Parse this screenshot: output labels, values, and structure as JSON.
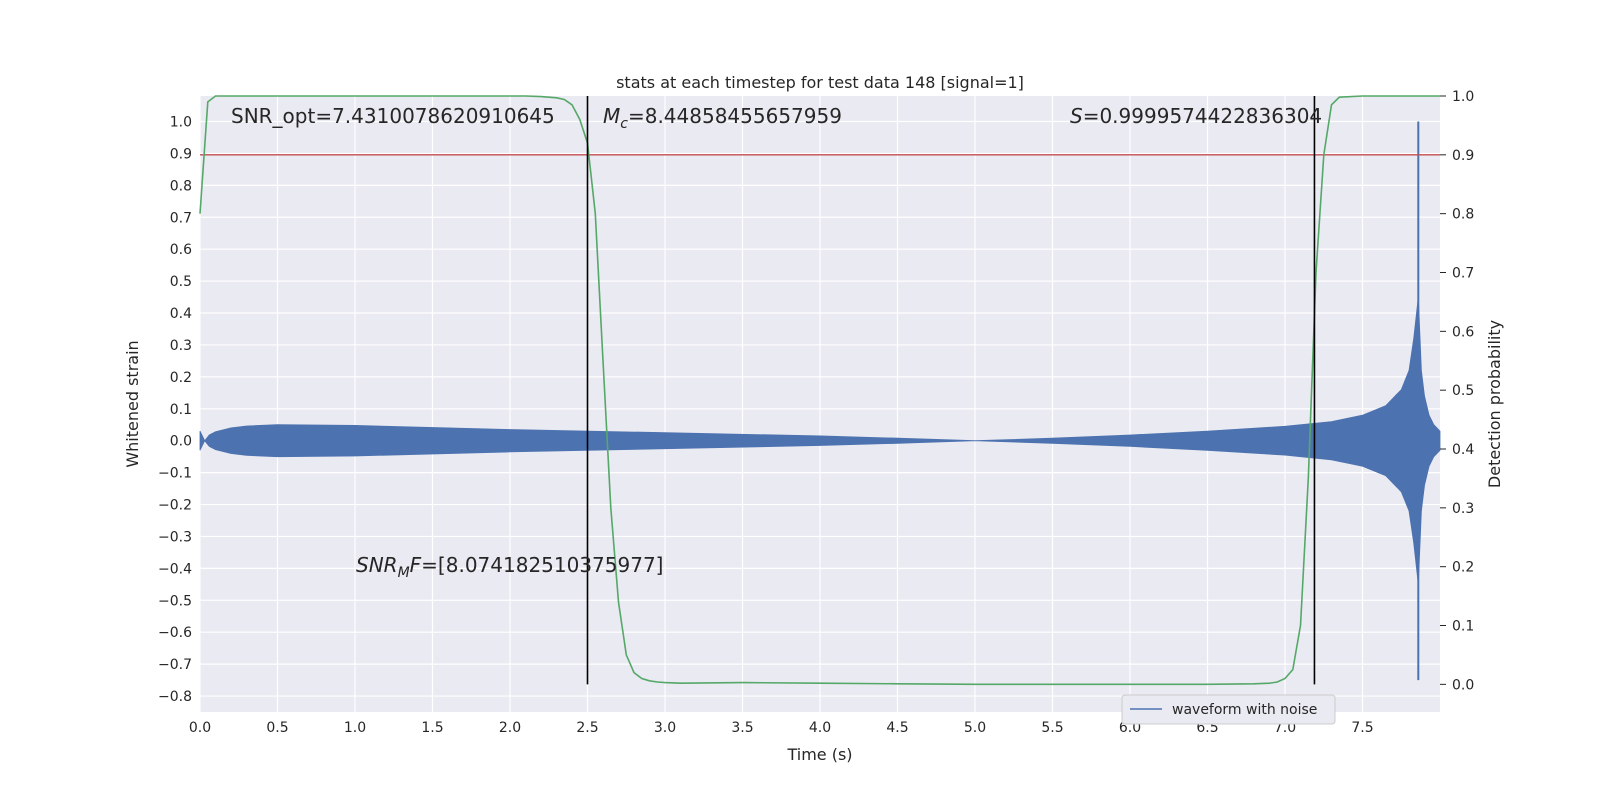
{
  "chart_data": {
    "type": "line",
    "title": "stats at each timestep for test data 148 [signal=1]",
    "xlabel": "Time (s)",
    "ylabel": "Whitened strain",
    "y2label": "Detection probability",
    "xlim": [
      0.0,
      8.0
    ],
    "ylim": [
      -0.85,
      1.08
    ],
    "y2lim": [
      -0.047,
      1.0
    ],
    "x_ticks": [
      "0.0",
      "0.5",
      "1.0",
      "1.5",
      "2.0",
      "2.5",
      "3.0",
      "3.5",
      "4.0",
      "4.5",
      "5.0",
      "5.5",
      "6.0",
      "6.5",
      "7.0",
      "7.5"
    ],
    "y_ticks": [
      "1.0",
      "0.9",
      "0.8",
      "0.7",
      "0.6",
      "0.5",
      "0.4",
      "0.3",
      "0.2",
      "0.1",
      "0.0",
      "−0.1",
      "−0.2",
      "−0.3",
      "−0.4",
      "−0.5",
      "−0.6",
      "−0.7",
      "−0.8"
    ],
    "y2_ticks": [
      "1.0",
      "0.9",
      "0.8",
      "0.7",
      "0.6",
      "0.5",
      "0.4",
      "0.3",
      "0.2",
      "0.1",
      "0.0"
    ],
    "grid": true,
    "legend_position": "lower-right",
    "annotations": {
      "snr_opt": "SNR_opt=7.4310078620910645",
      "mc": "=8.44858455657959",
      "s": "=0.9999574422836304",
      "snr_mf": "=[8.074182510375977]"
    },
    "threshold": {
      "value": 0.9,
      "color": "#c44e52"
    },
    "vertical_lines": {
      "x": [
        2.5,
        7.19
      ],
      "ymin": 0.0,
      "ymax": 1.0,
      "color": "#000000"
    },
    "series": [
      {
        "name": "waveform with noise",
        "axis": "left",
        "color": "#4c72b0",
        "envelope": {
          "t": [
            0.0,
            0.03,
            0.06,
            0.1,
            0.2,
            0.3,
            0.5,
            1.0,
            2.0,
            3.0,
            4.0,
            4.5,
            5.0,
            5.5,
            6.0,
            6.5,
            7.0,
            7.3,
            7.5,
            7.65,
            7.75,
            7.8,
            7.83,
            7.86,
            7.88,
            7.9,
            7.93,
            7.96,
            8.0
          ],
          "amplitude": [
            0.03,
            0.0,
            0.018,
            0.028,
            0.04,
            0.046,
            0.05,
            0.048,
            0.035,
            0.025,
            0.015,
            0.008,
            0.0,
            0.008,
            0.018,
            0.03,
            0.045,
            0.06,
            0.08,
            0.11,
            0.16,
            0.22,
            0.32,
            0.45,
            0.22,
            0.14,
            0.08,
            0.05,
            0.03
          ]
        },
        "spike": {
          "x": 7.86,
          "ymin": -0.75,
          "ymax": 1.0
        }
      },
      {
        "name": "detection probability",
        "axis": "right",
        "color": "#55a868",
        "x": [
          0.0,
          0.05,
          0.1,
          0.15,
          0.2,
          0.5,
          1.0,
          1.5,
          2.0,
          2.1,
          2.2,
          2.3,
          2.35,
          2.4,
          2.45,
          2.5,
          2.55,
          2.6,
          2.65,
          2.7,
          2.75,
          2.8,
          2.85,
          2.9,
          2.95,
          3.0,
          3.1,
          3.5,
          4.0,
          4.5,
          5.0,
          6.0,
          6.5,
          6.8,
          6.9,
          6.95,
          7.0,
          7.05,
          7.1,
          7.15,
          7.2,
          7.25,
          7.3,
          7.35,
          7.5,
          8.0
        ],
        "y": [
          0.8,
          0.99,
          1.0,
          1.0,
          1.0,
          1.0,
          1.0,
          1.0,
          1.0,
          1.0,
          0.999,
          0.997,
          0.994,
          0.985,
          0.96,
          0.92,
          0.8,
          0.55,
          0.3,
          0.14,
          0.05,
          0.02,
          0.01,
          0.006,
          0.004,
          0.003,
          0.002,
          0.003,
          0.002,
          0.001,
          0.0,
          0.0,
          0.0,
          0.001,
          0.002,
          0.004,
          0.01,
          0.025,
          0.1,
          0.35,
          0.7,
          0.9,
          0.985,
          0.998,
          1.0,
          1.0
        ]
      }
    ]
  }
}
